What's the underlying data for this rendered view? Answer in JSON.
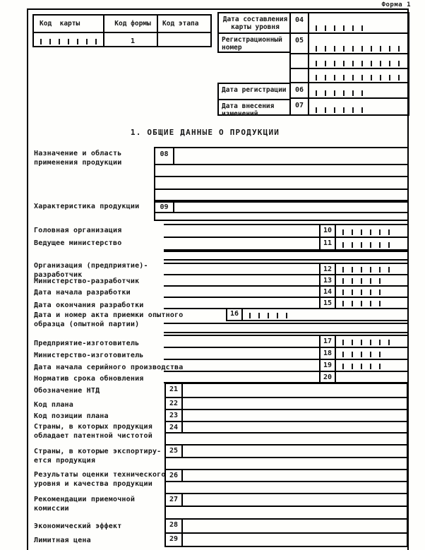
{
  "form_label": "Форма 1",
  "top_left_table": {
    "col1": "Код  карты",
    "col2": "Код формы",
    "col3": "Код этапа",
    "form_code_value": "1",
    "card_code_ticks": 7
  },
  "top_right_table": {
    "rows": [
      {
        "label1": "Дата составления",
        "label2": "карты уровня",
        "code": "04",
        "ticks": 6
      },
      {
        "label1": "Регистрационный",
        "label2": "номер",
        "code": "05",
        "ticks": 10
      },
      {
        "label1": "",
        "label2": "",
        "code": "",
        "ticks": 10
      },
      {
        "label1": "",
        "label2": "",
        "code": "",
        "ticks": 10
      },
      {
        "label1": "Дата регистрации",
        "label2": "",
        "code": "06",
        "ticks": 6
      },
      {
        "label1": "Дата внесения",
        "label2": "изменений",
        "code": "07",
        "ticks": 6
      }
    ]
  },
  "section_title": "1. ОБЩИЕ ДАННЫЕ О ПРОДУКЦИИ",
  "fields": {
    "f08": {
      "label1": "Назначение и область",
      "label2": "применения продукции",
      "code": "08"
    },
    "f09": {
      "label1": "Характеристика продукции",
      "code": "09"
    },
    "f10": {
      "label1": "Головная организация",
      "code": "10",
      "ticks": 6
    },
    "f11": {
      "label1": "Ведущее министерство",
      "code": "11",
      "ticks": 6
    },
    "f12": {
      "label1": "Организация (предприятие)-",
      "label2": "разработчик",
      "code": "12",
      "ticks": 6
    },
    "f13": {
      "label1": "Министерство-разработчик",
      "code": "13",
      "ticks": 5
    },
    "f14": {
      "label1": "Дата начала разработки",
      "code": "14",
      "ticks": 5
    },
    "f15": {
      "label1": "Дата окончания разработки",
      "code": "15",
      "ticks": 5
    },
    "f16": {
      "label1": "Дата и номер акта приемки опытного",
      "label2": "образца (опытной партии)",
      "code": "16",
      "ticks": 5
    },
    "f17": {
      "label1": "Предприятие-изготовитель",
      "code": "17",
      "ticks": 6
    },
    "f18": {
      "label1": "Министерство-изготовитель",
      "code": "18",
      "ticks": 5
    },
    "f19": {
      "label1": "Дата начала серийного производства",
      "code": "19",
      "ticks": 5
    },
    "f20": {
      "label1": "Норматив срока обновления",
      "code": "20",
      "ticks": 0
    },
    "f21": {
      "label1": "Обозначение НТД",
      "code": "21"
    },
    "f22": {
      "label1": "Код плана",
      "code": "22"
    },
    "f23": {
      "label1": "Код позиции плана",
      "code": "23"
    },
    "f24": {
      "label1": "Страны, в которых продукция",
      "label2": "обладает патентной чистотой",
      "code": "24"
    },
    "f25": {
      "label1": "Страны, в которые экспортиру-",
      "label2": "ется продукция",
      "code": "25"
    },
    "f26": {
      "label1": "Результаты оценки технического",
      "label2": "уровня и качества продукции",
      "code": "26"
    },
    "f27": {
      "label1": "Рекомендации приемочной",
      "label2": "комиссии",
      "code": "27"
    },
    "f28": {
      "label1": "Экономический эффект",
      "code": "28"
    },
    "f29": {
      "label1": "Лимитная цена",
      "code": "29"
    }
  }
}
